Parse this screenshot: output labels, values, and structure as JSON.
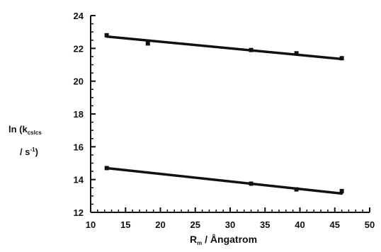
{
  "chart_data": {
    "type": "scatter",
    "title": "",
    "xlabel": {
      "main": "R",
      "sub": "m",
      "rest": " / Ångatrom"
    },
    "ylabel": {
      "line1_main": "ln (k",
      "line1_sub": "cslcs",
      "line2_main": "/ s",
      "line2_sup": "-1",
      "line2_end": ")"
    },
    "xlim": [
      10,
      50
    ],
    "ylim": [
      12,
      24
    ],
    "x_ticks": [
      "10",
      "15",
      "20",
      "25",
      "30",
      "35",
      "40",
      "45",
      "50"
    ],
    "y_ticks": [
      "12",
      "14",
      "16",
      "18",
      "20",
      "22",
      "24"
    ],
    "grid": false,
    "series": [
      {
        "points": [
          {
            "x": 12.3,
            "y": 22.8
          },
          {
            "x": 18.2,
            "y": 22.3
          },
          {
            "x": 33.0,
            "y": 21.9
          },
          {
            "x": 39.5,
            "y": 21.7
          },
          {
            "x": 46.0,
            "y": 21.4
          }
        ],
        "fit": {
          "x1": 12.3,
          "y1": 22.72,
          "x2": 46.0,
          "y2": 21.35
        }
      },
      {
        "points": [
          {
            "x": 12.3,
            "y": 14.7
          },
          {
            "x": 33.0,
            "y": 13.75
          },
          {
            "x": 39.5,
            "y": 13.4
          },
          {
            "x": 46.0,
            "y": 13.3
          }
        ],
        "fit": {
          "x1": 12.3,
          "y1": 14.7,
          "x2": 46.0,
          "y2": 13.15
        }
      }
    ]
  }
}
